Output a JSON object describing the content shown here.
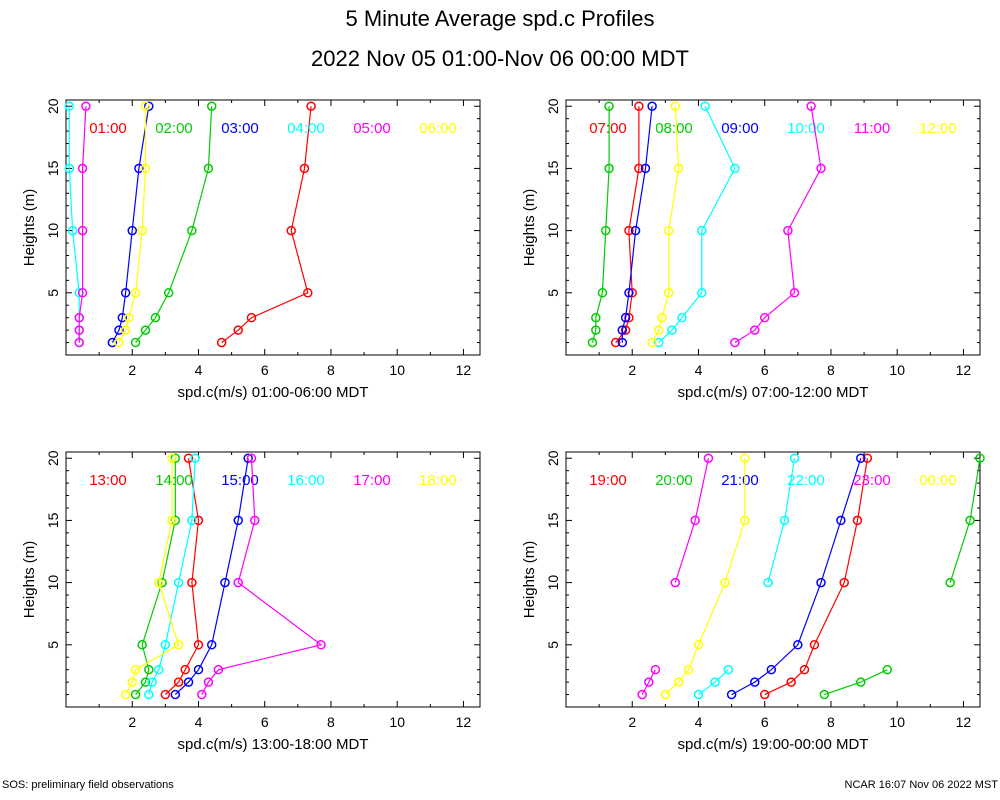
{
  "page": {
    "title": "5 Minute Average spd.c Profiles",
    "subtitle": "2022 Nov 05 01:00-Nov 06 00:00 MDT",
    "footer_left": "SOS: preliminary field observations",
    "footer_right": "NCAR 16:07 Nov 06 2022 MST"
  },
  "colors": {
    "series": [
      "#ff0000",
      "#00cc00",
      "#0000ff",
      "#00ffff",
      "#ff00ff",
      "#ffff00"
    ]
  },
  "chart_data": [
    {
      "type": "line",
      "title": "01:00-06:00",
      "xlabel": "spd.c(m/s) 01:00-06:00 MDT",
      "ylabel": "Heights (m)",
      "xlim": [
        0,
        12.5
      ],
      "ylim": [
        0,
        20.5
      ],
      "xticks": [
        "2",
        "4",
        "6",
        "8",
        "10",
        "12"
      ],
      "yticks": [
        "5",
        "10",
        "15",
        "20"
      ],
      "heights": [
        1,
        2,
        3,
        5,
        10,
        15,
        20
      ],
      "series": [
        {
          "name": "01:00",
          "values": [
            4.7,
            5.2,
            5.6,
            7.3,
            6.8,
            7.2,
            7.4
          ]
        },
        {
          "name": "02:00",
          "values": [
            2.1,
            2.4,
            2.7,
            3.1,
            3.8,
            4.3,
            4.4
          ]
        },
        {
          "name": "03:00",
          "values": [
            1.4,
            1.6,
            1.7,
            1.8,
            2.0,
            2.2,
            2.5
          ]
        },
        {
          "name": "04:00",
          "values": [
            0.4,
            0.4,
            0.4,
            0.4,
            0.2,
            0.1,
            0.1
          ]
        },
        {
          "name": "05:00",
          "values": [
            0.4,
            0.4,
            0.4,
            0.5,
            0.5,
            0.5,
            0.6
          ]
        },
        {
          "name": "06:00",
          "values": [
            1.6,
            1.8,
            1.9,
            2.1,
            2.3,
            2.4,
            2.4
          ]
        }
      ]
    },
    {
      "type": "line",
      "title": "07:00-12:00",
      "xlabel": "spd.c(m/s) 07:00-12:00 MDT",
      "ylabel": "Heights (m)",
      "xlim": [
        0,
        12.5
      ],
      "ylim": [
        0,
        20.5
      ],
      "xticks": [
        "2",
        "4",
        "6",
        "8",
        "10",
        "12"
      ],
      "yticks": [
        "5",
        "10",
        "15",
        "20"
      ],
      "heights": [
        1,
        2,
        3,
        5,
        10,
        15,
        20
      ],
      "series": [
        {
          "name": "07:00",
          "values": [
            1.5,
            1.8,
            1.9,
            2.0,
            1.9,
            2.2,
            2.2
          ]
        },
        {
          "name": "08:00",
          "values": [
            0.8,
            0.9,
            0.9,
            1.1,
            1.2,
            1.3,
            1.3
          ]
        },
        {
          "name": "09:00",
          "values": [
            1.7,
            1.7,
            1.8,
            1.9,
            2.1,
            2.4,
            2.6
          ]
        },
        {
          "name": "10:00",
          "values": [
            2.8,
            3.2,
            3.5,
            4.1,
            4.1,
            5.1,
            4.2
          ]
        },
        {
          "name": "11:00",
          "values": [
            5.1,
            5.7,
            6.0,
            6.9,
            6.7,
            7.7,
            7.4
          ]
        },
        {
          "name": "12:00",
          "values": [
            2.6,
            2.8,
            2.9,
            3.1,
            3.1,
            3.4,
            3.3
          ]
        }
      ]
    },
    {
      "type": "line",
      "title": "13:00-18:00",
      "xlabel": "spd.c(m/s) 13:00-18:00 MDT",
      "ylabel": "Heights (m)",
      "xlim": [
        0,
        12.5
      ],
      "ylim": [
        0,
        20.5
      ],
      "xticks": [
        "2",
        "4",
        "6",
        "8",
        "10",
        "12"
      ],
      "yticks": [
        "5",
        "10",
        "15",
        "20"
      ],
      "heights": [
        1,
        2,
        3,
        5,
        10,
        15,
        20
      ],
      "series": [
        {
          "name": "13:00",
          "values": [
            3.0,
            3.4,
            3.6,
            4.0,
            3.8,
            4.0,
            3.7
          ]
        },
        {
          "name": "14:00",
          "values": [
            2.1,
            2.4,
            2.5,
            2.3,
            2.9,
            3.3,
            3.3
          ]
        },
        {
          "name": "15:00",
          "values": [
            3.3,
            3.7,
            4.0,
            4.4,
            4.8,
            5.2,
            5.5
          ]
        },
        {
          "name": "16:00",
          "values": [
            2.5,
            2.6,
            2.8,
            3.0,
            3.4,
            3.8,
            3.9
          ]
        },
        {
          "name": "17:00",
          "values": [
            4.1,
            4.3,
            4.6,
            7.7,
            5.2,
            5.7,
            5.6
          ]
        },
        {
          "name": "18:00",
          "values": [
            1.8,
            2.0,
            2.1,
            3.4,
            2.8,
            3.2,
            3.2
          ]
        }
      ]
    },
    {
      "type": "line",
      "title": "19:00-00:00",
      "xlabel": "spd.c(m/s) 19:00-00:00 MDT",
      "ylabel": "Heights (m)",
      "xlim": [
        0,
        12.5
      ],
      "ylim": [
        0,
        20.5
      ],
      "xticks": [
        "2",
        "4",
        "6",
        "8",
        "10",
        "12"
      ],
      "yticks": [
        "5",
        "10",
        "15",
        "20"
      ],
      "heights": [
        1,
        2,
        3,
        5,
        10,
        15,
        20
      ],
      "series": [
        {
          "name": "19:00",
          "values": [
            6.0,
            6.8,
            7.2,
            7.5,
            8.4,
            8.8,
            9.1
          ]
        },
        {
          "name": "20:00",
          "values": [
            7.8,
            8.9,
            9.7,
            null,
            11.6,
            12.2,
            12.5
          ]
        },
        {
          "name": "21:00",
          "values": [
            5.0,
            5.7,
            6.2,
            7.0,
            7.7,
            8.3,
            8.9
          ]
        },
        {
          "name": "22:00",
          "values": [
            4.0,
            4.5,
            4.9,
            null,
            6.1,
            6.6,
            6.9
          ]
        },
        {
          "name": "23:00",
          "values": [
            2.3,
            2.5,
            2.7,
            null,
            3.3,
            3.9,
            4.3
          ]
        },
        {
          "name": "00:00",
          "values": [
            3.0,
            3.4,
            3.7,
            4.0,
            4.8,
            5.4,
            5.4
          ]
        }
      ]
    }
  ]
}
